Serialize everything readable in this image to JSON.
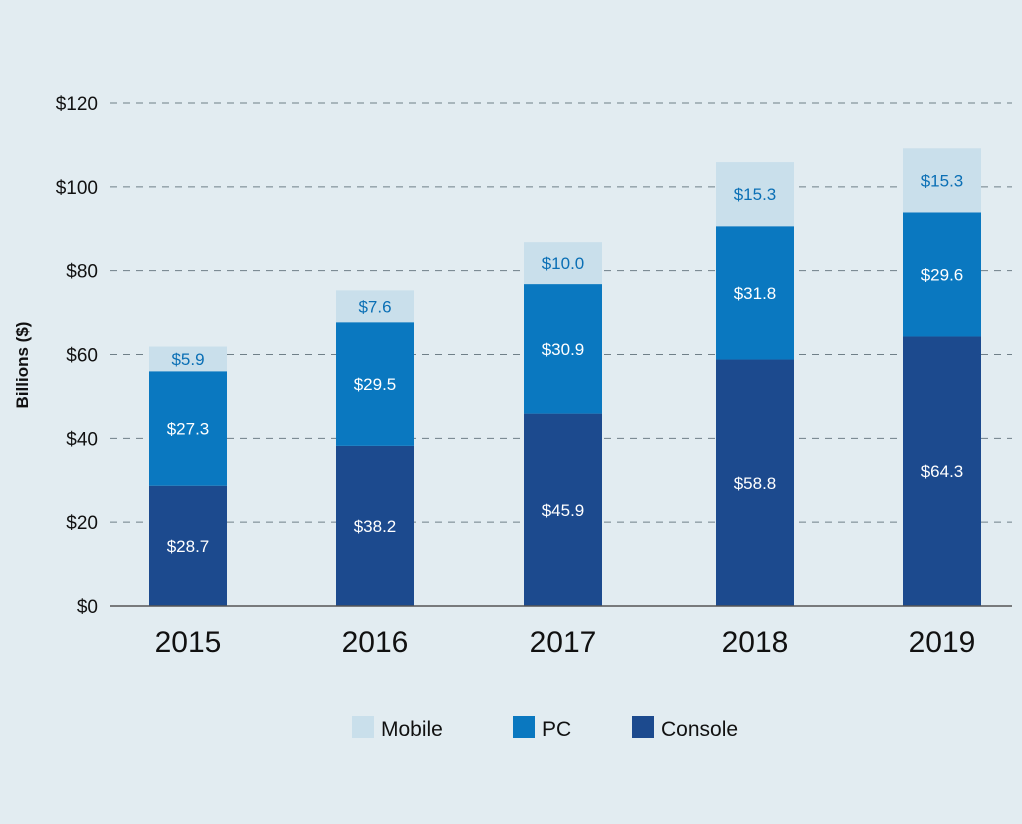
{
  "chart_data": {
    "type": "bar",
    "stacked": true,
    "categories": [
      "2015",
      "2016",
      "2017",
      "2018",
      "2019"
    ],
    "series": [
      {
        "name": "Console",
        "values": [
          28.7,
          38.2,
          45.9,
          58.8,
          64.3
        ],
        "labels": [
          "$28.7",
          "$38.2",
          "$45.9",
          "$58.8",
          "$64.3"
        ],
        "color": "#1c4a8e",
        "label_color": "#ffffff"
      },
      {
        "name": "PC",
        "values": [
          27.3,
          29.5,
          30.9,
          31.8,
          29.6
        ],
        "labels": [
          "$27.3",
          "$29.5",
          "$30.9",
          "$31.8",
          "$29.6"
        ],
        "color": "#0a78c0",
        "label_color": "#ffffff"
      },
      {
        "name": "Mobile",
        "values": [
          5.9,
          7.6,
          10.0,
          15.3,
          15.3
        ],
        "labels": [
          "$5.9",
          "$7.6",
          "$10.0",
          "$15.3",
          "$15.3"
        ],
        "color": "#c9dfeb",
        "label_color": "#0a6fb5"
      }
    ],
    "ylabel": "Billions ($)",
    "ylim": [
      0,
      120
    ],
    "yticks": [
      0,
      20,
      40,
      60,
      80,
      100,
      120
    ],
    "ytick_labels": [
      "$0",
      "$20",
      "$40",
      "$60",
      "$80",
      "$100",
      "$120"
    ],
    "grid": true,
    "legend_position": "bottom",
    "legend_order": [
      "Mobile",
      "PC",
      "Console"
    ]
  }
}
